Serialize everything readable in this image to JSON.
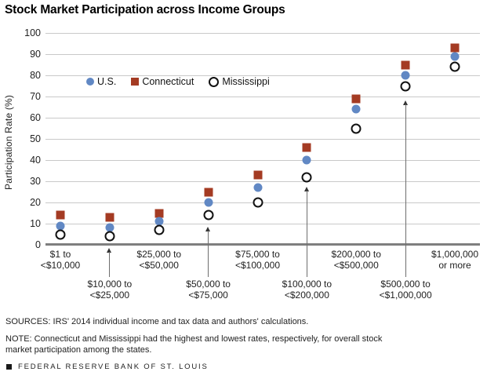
{
  "chart_data": {
    "type": "scatter",
    "title": "Stock Market Participation across Income Groups",
    "xlabel": "",
    "ylabel": "Participation Rate (%)",
    "ylim": [
      0,
      100
    ],
    "y_tick_step": 10,
    "grid": true,
    "legend_position": "inside-top-left",
    "categories": [
      "$1 to <$10,000",
      "$10,000 to <$25,000",
      "$25,000 to <$50,000",
      "$50,000 to <$75,000",
      "$75,000 to <$100,000",
      "$100,000 to <$200,000",
      "$200,000 to <$500,000",
      "$500,000 to <$1,000,000",
      "$1,000,000 or more"
    ],
    "category_lines": [
      [
        "$1 to",
        "<$10,000"
      ],
      [
        "$10,000 to",
        "<$25,000"
      ],
      [
        "$25,000 to",
        "<$50,000"
      ],
      [
        "$50,000 to",
        "<$75,000"
      ],
      [
        "$75,000 to",
        "<$100,000"
      ],
      [
        "$100,000 to",
        "<$200,000"
      ],
      [
        "$200,000 to",
        "<$500,000"
      ],
      [
        "$500,000 to",
        "<$1,000,000"
      ],
      [
        "$1,000,000",
        "or more"
      ]
    ],
    "label_rows": [
      1,
      2,
      1,
      2,
      1,
      2,
      1,
      2,
      1
    ],
    "arrow_tip_values": [
      null,
      -1.5,
      null,
      8.5,
      null,
      27.5,
      null,
      68,
      null
    ],
    "series": [
      {
        "name": "U.S.",
        "marker": "filled-circle",
        "color": "#6188c4",
        "values": [
          9,
          8,
          11,
          20,
          27,
          40,
          64,
          80,
          89
        ]
      },
      {
        "name": "Connecticut",
        "marker": "filled-square",
        "color": "#a43b23",
        "values": [
          14,
          13,
          15,
          25,
          33,
          46,
          69,
          85,
          93
        ]
      },
      {
        "name": "Mississippi",
        "marker": "open-circle",
        "color": "#111111",
        "values": [
          5,
          4,
          7,
          14,
          20,
          32,
          55,
          75,
          84
        ]
      }
    ],
    "axis_color": "#7f7f7f",
    "grid_color": "#c9c9c9"
  },
  "footer": {
    "sources": "SOURCES: IRS' 2014 individual income and tax data and authors' calculations.",
    "note": "NOTE: Connecticut and Mississippi had the highest and lowest rates, respectively, for overall stock market participation among the states.",
    "brand": "FEDERAL RESERVE BANK OF ST. LOUIS"
  }
}
